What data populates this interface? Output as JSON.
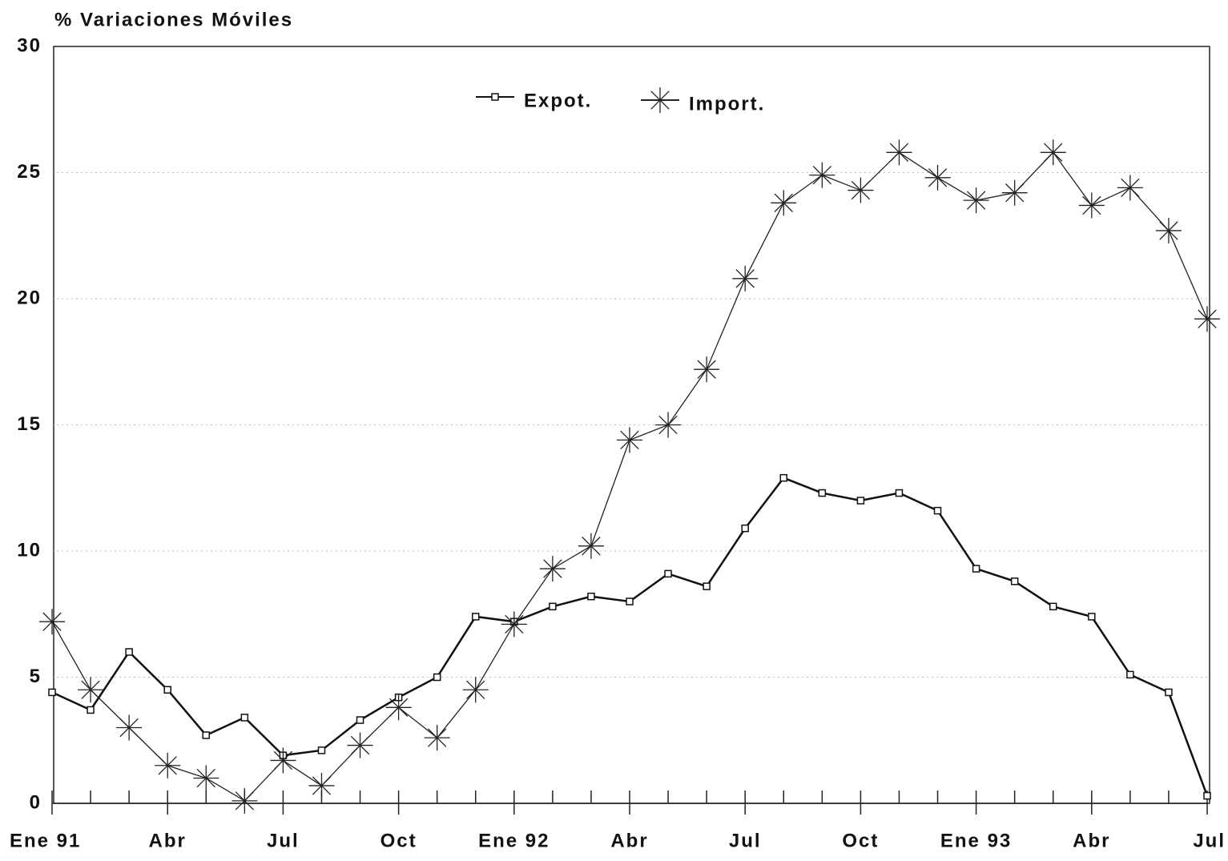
{
  "chart_data": {
    "type": "line",
    "title": "% Variaciones Móviles",
    "categories": [
      "Ene 91",
      null,
      null,
      "Abr",
      null,
      null,
      "Jul",
      null,
      null,
      "Oct",
      null,
      null,
      "Ene 92",
      null,
      null,
      "Abr",
      null,
      null,
      "Jul",
      null,
      null,
      "Oct",
      null,
      null,
      "Ene 93",
      null,
      null,
      "Abr",
      null,
      null,
      "Jul"
    ],
    "series": [
      {
        "name": "Expot.",
        "color": "#111111",
        "marker": "square",
        "values": [
          4.4,
          3.7,
          6.0,
          4.5,
          2.7,
          3.4,
          1.9,
          2.1,
          3.3,
          4.2,
          5.0,
          7.4,
          7.2,
          7.8,
          8.2,
          8.0,
          9.1,
          8.6,
          10.9,
          12.9,
          12.3,
          12.0,
          12.3,
          11.6,
          9.3,
          8.8,
          7.8,
          7.4,
          5.1,
          4.4,
          0.3
        ]
      },
      {
        "name": "Import.",
        "color": "#222222",
        "marker": "asterisk",
        "values": [
          7.2,
          4.5,
          3.0,
          1.5,
          1.0,
          0.1,
          1.7,
          0.7,
          2.3,
          3.8,
          2.6,
          4.5,
          7.1,
          9.3,
          10.2,
          14.4,
          15.0,
          17.2,
          20.8,
          23.8,
          24.9,
          24.3,
          25.8,
          24.8,
          23.9,
          24.2,
          25.8,
          23.7,
          24.4,
          22.7,
          19.2
        ]
      }
    ],
    "ylim": [
      0,
      30
    ],
    "yticks": [
      0,
      5,
      10,
      15,
      20,
      25,
      30
    ],
    "grid": true,
    "legend": "top"
  }
}
